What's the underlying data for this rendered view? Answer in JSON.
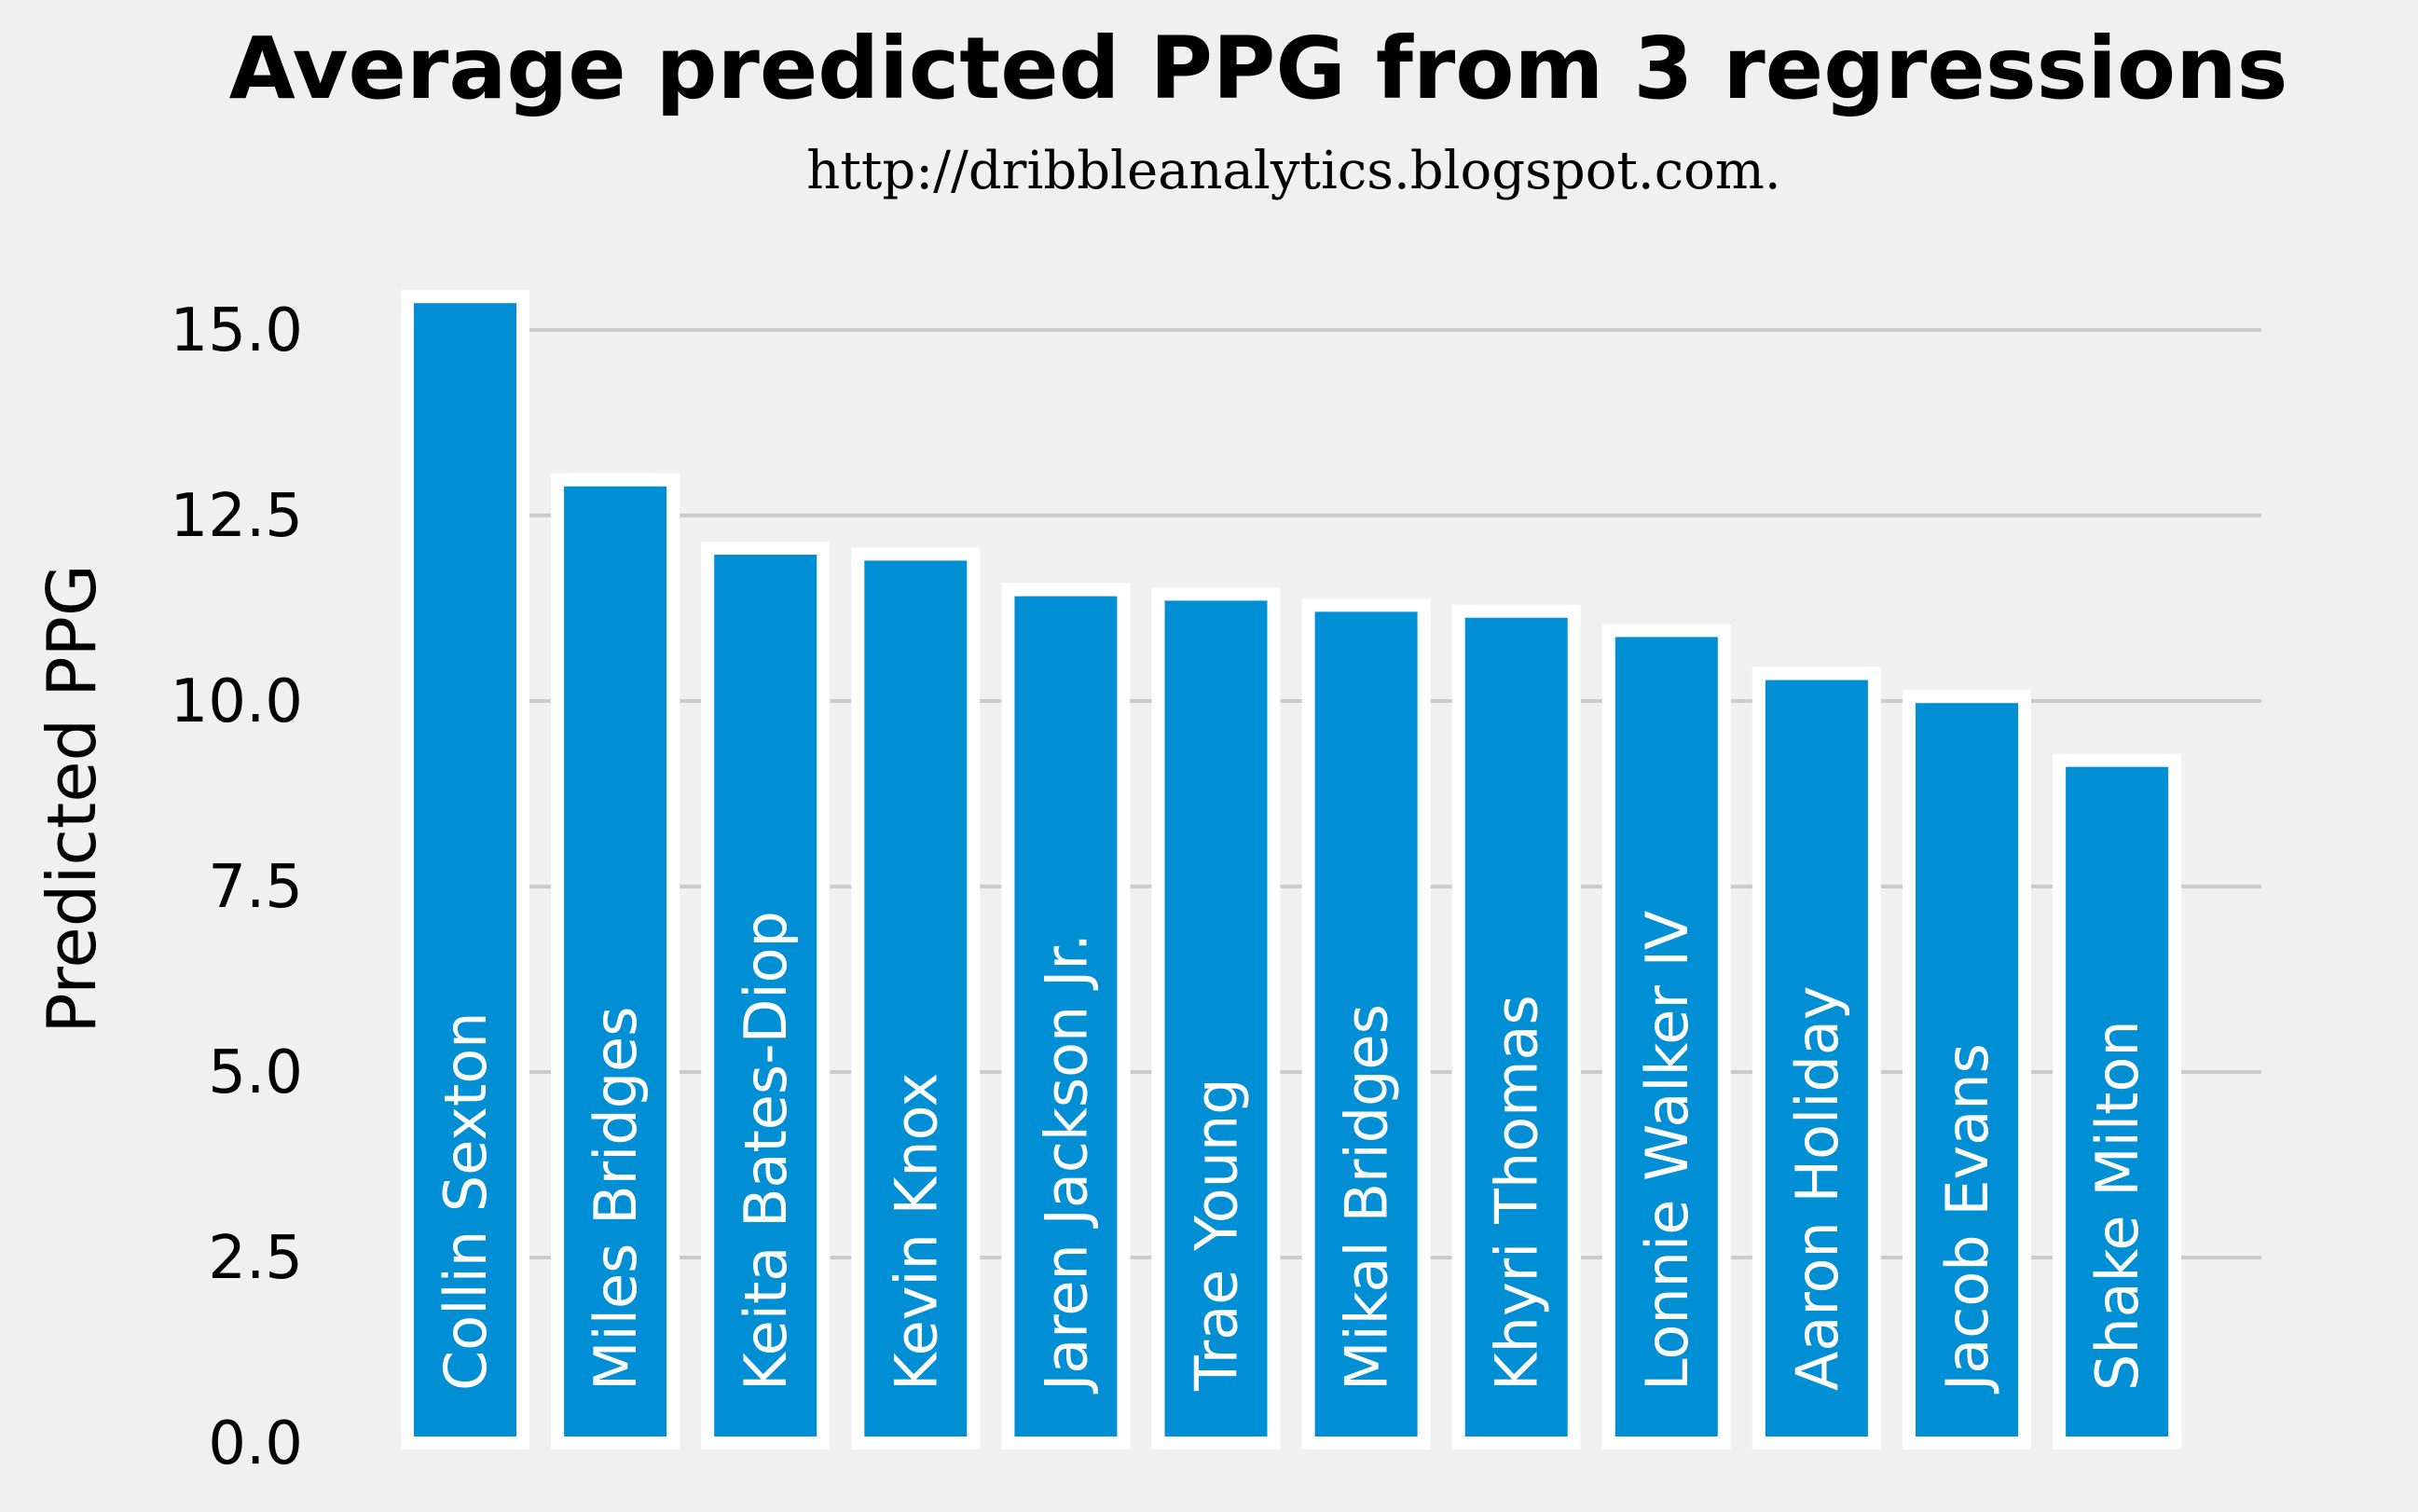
{
  "chart_data": {
    "type": "bar",
    "title": "Average predicted PPG from 3 regressions",
    "subtitle": "http://dribbleanalytics.blogspot.com.",
    "xlabel": "",
    "ylabel": "Predicted PPG",
    "ylim": [
      0,
      15.5
    ],
    "yticks": [
      "0.0",
      "2.5",
      "5.0",
      "7.5",
      "10.0",
      "12.5",
      "15.0"
    ],
    "grid": "horizontal",
    "categories": [
      "Collin Sexton",
      "Miles Bridges",
      "Keita Bates-Diop",
      "Kevin Knox",
      "Jaren Jackson Jr.",
      "Trae Young",
      "Mikal Bridges",
      "Khyri Thomas",
      "Lonnie Walker IV",
      "Aaron Holiday",
      "Jacob Evans",
      "Shake Milton"
    ],
    "values": [
      15.45,
      12.98,
      12.06,
      11.98,
      11.5,
      11.44,
      11.29,
      11.21,
      10.95,
      10.37,
      10.06,
      9.2
    ],
    "bar_color": "#008fd5",
    "bar_edge_color": "#ffffff",
    "background_color": "#f0f0f0",
    "grid_color": "#cbcbcb"
  }
}
